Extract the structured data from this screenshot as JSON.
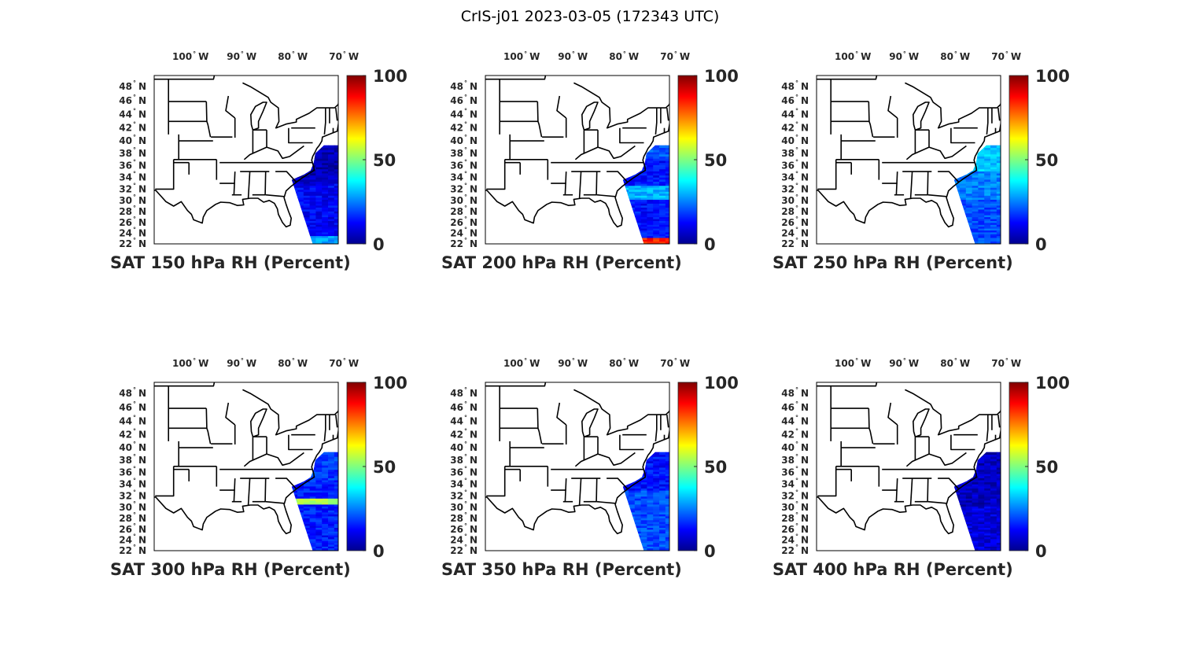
{
  "figure": {
    "title": "CrIS-j01 2023-03-05 (172343 UTC)"
  },
  "map": {
    "lon_ticks": [
      {
        "value": -100,
        "label": "100",
        "hemi": "W"
      },
      {
        "value": -90,
        "label": "90",
        "hemi": "W"
      },
      {
        "value": -80,
        "label": "80",
        "hemi": "W"
      },
      {
        "value": -70,
        "label": "70",
        "hemi": "W"
      }
    ],
    "lat_ticks": [
      {
        "value": 48,
        "label": "48",
        "hemi": "N"
      },
      {
        "value": 46,
        "label": "46",
        "hemi": "N"
      },
      {
        "value": 44,
        "label": "44",
        "hemi": "N"
      },
      {
        "value": 42,
        "label": "42",
        "hemi": "N"
      },
      {
        "value": 40,
        "label": "40",
        "hemi": "N"
      },
      {
        "value": 38,
        "label": "38",
        "hemi": "N"
      },
      {
        "value": 36,
        "label": "36",
        "hemi": "N"
      },
      {
        "value": 34,
        "label": "34",
        "hemi": "N"
      },
      {
        "value": 32,
        "label": "32",
        "hemi": "N"
      },
      {
        "value": 30,
        "label": "30",
        "hemi": "N"
      },
      {
        "value": 28,
        "label": "28",
        "hemi": "N"
      },
      {
        "value": 26,
        "label": "26",
        "hemi": "N"
      },
      {
        "value": 24,
        "label": "24",
        "hemi": "N"
      },
      {
        "value": 22,
        "label": "22",
        "hemi": "N"
      }
    ],
    "degree_symbol": "°",
    "projection": "mercator",
    "extent": {
      "lon": [
        -106.8,
        -70.8
      ],
      "lat": [
        22,
        49.5
      ]
    }
  },
  "colorbar": {
    "colormap": "jet",
    "range": [
      0,
      100
    ],
    "ticks": [
      {
        "value": 100,
        "label": "100"
      },
      {
        "value": 50,
        "label": "50"
      },
      {
        "value": 0,
        "label": "0"
      }
    ]
  },
  "panels": [
    {
      "title": "SAT 150 hPa RH (Percent)"
    },
    {
      "title": "SAT 200 hPa RH (Percent)"
    },
    {
      "title": "SAT 250 hPa RH (Percent)"
    },
    {
      "title": "SAT 300 hPa RH (Percent)"
    },
    {
      "title": "SAT 350 hPa RH (Percent)"
    },
    {
      "title": "SAT 400 hPa RH (Percent)"
    }
  ]
}
